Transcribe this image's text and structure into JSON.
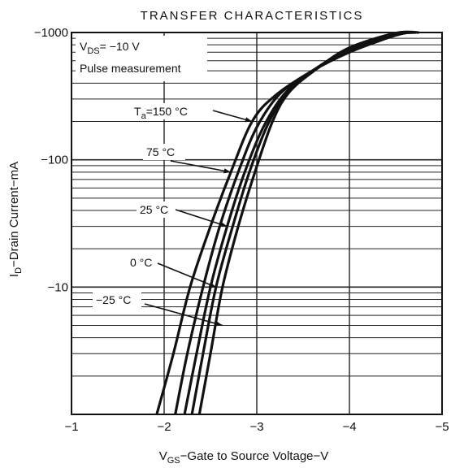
{
  "chart_data": {
    "type": "line",
    "title": "TRANSFER CHARACTERISTICS",
    "xlabel": {
      "main": "V",
      "sub": "GS",
      "rest": "−Gate to Source Voltage−V"
    },
    "ylabel": {
      "main": "I",
      "sub": "D",
      "rest": "−Drain Current−mA"
    },
    "x_axis": {
      "min": -1,
      "max": -5,
      "scale": "linear",
      "ticks": [
        -1,
        -2,
        -3,
        -4,
        -5
      ],
      "tick_labels": [
        "−1",
        "−2",
        "−3",
        "−4",
        "−5"
      ]
    },
    "y_axis": {
      "min": 1,
      "max": 1000,
      "scale": "log",
      "ticks": [
        1000,
        100,
        10
      ],
      "tick_labels": [
        "−1000",
        "−100",
        "−10"
      ]
    },
    "grid": true,
    "conditions": {
      "vds_main": "V",
      "vds_sub": "DS",
      "vds_rest": "= −10 V",
      "note": "Pulse measurement"
    },
    "series": [
      {
        "name": "Ta=150°C",
        "label_main": "T",
        "label_sub": "a",
        "label_rest": "=150 °C",
        "points": [
          [
            -1.92,
            1
          ],
          [
            -2.1,
            3
          ],
          [
            -2.28,
            10
          ],
          [
            -2.5,
            30
          ],
          [
            -2.72,
            80
          ],
          [
            -2.95,
            200
          ],
          [
            -3.2,
            320
          ],
          [
            -3.6,
            500
          ],
          [
            -4.0,
            700
          ],
          [
            -4.4,
            900
          ],
          [
            -4.6,
            1000
          ]
        ]
      },
      {
        "name": "75°C",
        "label_main": "75 °C",
        "label_sub": "",
        "label_rest": "",
        "points": [
          [
            -2.12,
            1
          ],
          [
            -2.25,
            3
          ],
          [
            -2.42,
            10
          ],
          [
            -2.6,
            30
          ],
          [
            -2.8,
            80
          ],
          [
            -3.0,
            180
          ],
          [
            -3.25,
            330
          ],
          [
            -3.6,
            500
          ],
          [
            -4.0,
            720
          ],
          [
            -4.5,
            950
          ],
          [
            -4.65,
            1000
          ]
        ]
      },
      {
        "name": "25°C",
        "label_main": "25 °C",
        "label_sub": "",
        "label_rest": "",
        "points": [
          [
            -2.22,
            1
          ],
          [
            -2.35,
            3
          ],
          [
            -2.5,
            10
          ],
          [
            -2.68,
            30
          ],
          [
            -2.87,
            80
          ],
          [
            -3.07,
            180
          ],
          [
            -3.3,
            330
          ],
          [
            -3.6,
            500
          ],
          [
            -4.0,
            720
          ],
          [
            -4.5,
            960
          ],
          [
            -4.7,
            1000
          ]
        ]
      },
      {
        "name": "0°C",
        "label_main": "0 °C",
        "label_sub": "",
        "label_rest": "",
        "points": [
          [
            -2.3,
            1
          ],
          [
            -2.42,
            3
          ],
          [
            -2.56,
            10
          ],
          [
            -2.74,
            30
          ],
          [
            -2.92,
            80
          ],
          [
            -3.12,
            190
          ],
          [
            -3.32,
            330
          ],
          [
            -3.62,
            510
          ],
          [
            -4.0,
            740
          ],
          [
            -4.5,
            980
          ],
          [
            -4.72,
            1000
          ]
        ]
      },
      {
        "name": "−25°C",
        "label_main": "−25 °C",
        "label_sub": "",
        "label_rest": "",
        "points": [
          [
            -2.38,
            1
          ],
          [
            -2.5,
            3
          ],
          [
            -2.63,
            10
          ],
          [
            -2.8,
            30
          ],
          [
            -2.98,
            80
          ],
          [
            -3.17,
            200
          ],
          [
            -3.35,
            340
          ],
          [
            -3.65,
            520
          ],
          [
            -4.0,
            760
          ],
          [
            -4.5,
            990
          ],
          [
            -4.75,
            1000
          ]
        ]
      }
    ]
  }
}
